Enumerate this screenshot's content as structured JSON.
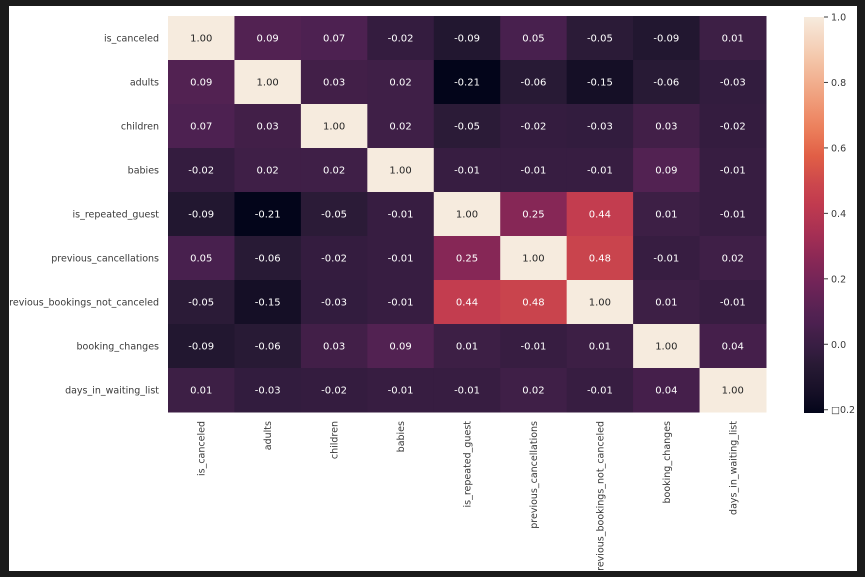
{
  "chart_data": {
    "type": "heatmap",
    "title": "",
    "variables": [
      "is_canceled",
      "adults",
      "children",
      "babies",
      "is_repeated_guest",
      "previous_cancellations",
      "previous_bookings_not_canceled",
      "booking_changes",
      "days_in_waiting_list"
    ],
    "matrix": [
      [
        1.0,
        0.09,
        0.07,
        -0.02,
        -0.09,
        0.05,
        -0.05,
        -0.09,
        0.01
      ],
      [
        0.09,
        1.0,
        0.03,
        0.02,
        -0.21,
        -0.06,
        -0.15,
        -0.06,
        -0.03
      ],
      [
        0.07,
        0.03,
        1.0,
        0.02,
        -0.05,
        -0.02,
        -0.03,
        0.03,
        -0.02
      ],
      [
        -0.02,
        0.02,
        0.02,
        1.0,
        -0.01,
        -0.01,
        -0.01,
        0.09,
        -0.01
      ],
      [
        -0.09,
        -0.21,
        -0.05,
        -0.01,
        1.0,
        0.25,
        0.44,
        0.01,
        -0.01
      ],
      [
        0.05,
        -0.06,
        -0.02,
        -0.01,
        0.25,
        1.0,
        0.48,
        -0.01,
        0.02
      ],
      [
        -0.05,
        -0.15,
        -0.03,
        -0.01,
        0.44,
        0.48,
        1.0,
        0.01,
        -0.01
      ],
      [
        -0.09,
        -0.06,
        0.03,
        0.09,
        0.01,
        -0.01,
        0.01,
        1.0,
        0.04
      ],
      [
        0.01,
        -0.03,
        -0.02,
        -0.01,
        -0.01,
        0.02,
        -0.01,
        0.04,
        1.0
      ]
    ],
    "annotation_format": "0.00",
    "colormap": "rocket",
    "vmin": -0.21,
    "vmax": 1.0,
    "colorbar": {
      "ticks": [
        1.0,
        0.8,
        0.6,
        0.4,
        0.2,
        0.0,
        -0.2
      ],
      "tick_labels": [
        "1.0",
        "0.8",
        "0.6",
        "0.4",
        "0.2",
        "0.0",
        "□0.2"
      ],
      "placement": "right"
    },
    "colors": {
      "low": "#03051a",
      "high": "#faebdd",
      "annotation_light": "#ffffff",
      "annotation_dark": "#262626"
    }
  }
}
